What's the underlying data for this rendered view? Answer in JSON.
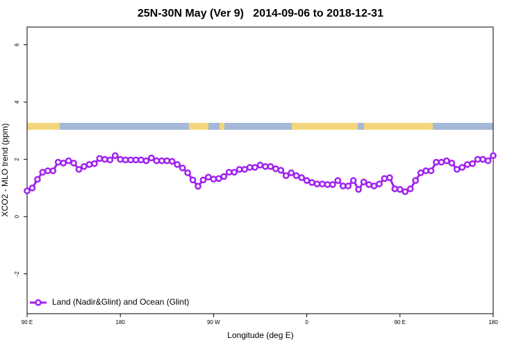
{
  "chart_data": {
    "type": "line",
    "title": "25N-30N May (Ver 9)   2014-09-06 to 2018-12-31",
    "x_label": "Longitude (deg E)",
    "y_label": "XCO2 - MLO trend (ppm)",
    "xlim": [
      90,
      540
    ],
    "ylim": [
      -3.39,
      6.62
    ],
    "xticks": [
      {
        "value": 90,
        "label": "90 E"
      },
      180,
      {
        "value": 270,
        "label": "90 W"
      },
      {
        "value": 360,
        "label": "0"
      },
      {
        "value": 450,
        "label": "90 E"
      },
      {
        "value": 540,
        "label": "180"
      }
    ],
    "yticks": [
      -2,
      0,
      2,
      4,
      6
    ],
    "legend_position": "bottom-left",
    "series": [
      {
        "name": "Land (Nadir&Glint) and Ocean (Glint)",
        "color": "#a020f0",
        "x": [
          90,
          95,
          100,
          105,
          110,
          115,
          120,
          125,
          130,
          135,
          140,
          145,
          150,
          155,
          160,
          165,
          170,
          175,
          180,
          185,
          190,
          195,
          200,
          205,
          210,
          215,
          220,
          225,
          230,
          235,
          240,
          245,
          250,
          255,
          260,
          265,
          270,
          275,
          280,
          285,
          290,
          295,
          300,
          305,
          310,
          315,
          320,
          325,
          330,
          335,
          340,
          345,
          350,
          355,
          360,
          365,
          370,
          375,
          380,
          385,
          390,
          395,
          400,
          405,
          410,
          415,
          420,
          425,
          430,
          435,
          440,
          445,
          450,
          455,
          460,
          465,
          470,
          475,
          480,
          485,
          490,
          495,
          500,
          505,
          510,
          515,
          520,
          525,
          530,
          535,
          540
        ],
        "values": [
          0.9,
          1.0,
          1.3,
          1.55,
          1.6,
          1.6,
          1.9,
          1.87,
          1.95,
          1.87,
          1.65,
          1.75,
          1.82,
          1.85,
          2.03,
          2.0,
          1.98,
          2.13,
          2.0,
          1.98,
          1.98,
          1.98,
          1.98,
          1.95,
          2.05,
          1.95,
          1.95,
          1.95,
          1.93,
          1.82,
          1.7,
          1.53,
          1.28,
          1.06,
          1.28,
          1.38,
          1.31,
          1.33,
          1.4,
          1.55,
          1.55,
          1.65,
          1.65,
          1.72,
          1.72,
          1.8,
          1.75,
          1.75,
          1.67,
          1.62,
          1.43,
          1.53,
          1.43,
          1.36,
          1.26,
          1.19,
          1.14,
          1.14,
          1.12,
          1.12,
          1.26,
          1.07,
          1.07,
          1.26,
          0.95,
          1.21,
          1.12,
          1.07,
          1.14,
          1.33,
          1.36,
          0.97,
          0.95,
          0.87,
          0.97,
          1.26,
          1.53,
          1.6,
          1.6,
          1.9,
          1.9,
          1.95,
          1.87,
          1.65,
          1.72,
          1.82,
          1.85,
          2.0,
          2.0,
          1.95,
          2.13
        ]
      }
    ]
  }
}
